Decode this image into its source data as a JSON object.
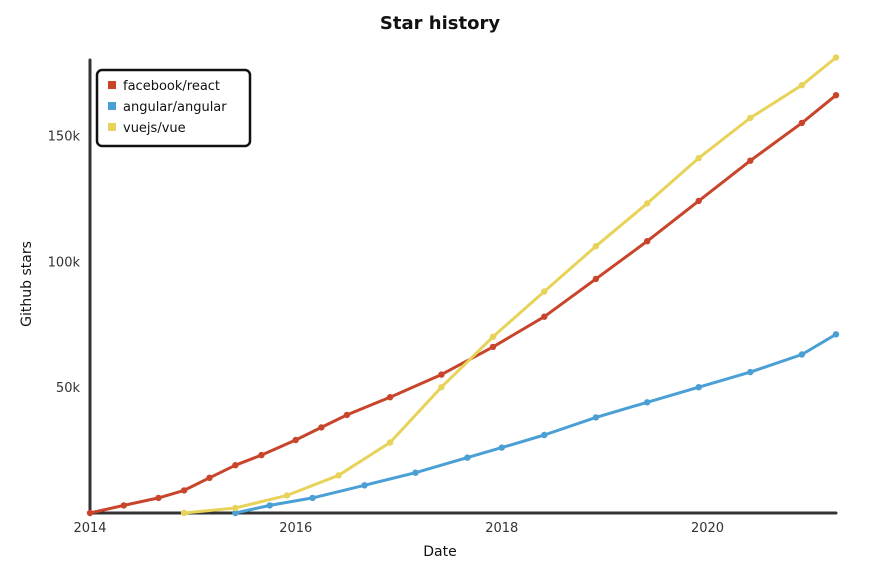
{
  "chart_data": {
    "type": "line",
    "title": "Star history",
    "xlabel": "Date",
    "ylabel": "Github stars",
    "xlim": [
      "2014-01-01",
      "2021-04-01"
    ],
    "ylim": [
      0,
      180000
    ],
    "x_ticks": [
      {
        "value": "2014-01-01",
        "label": "2014"
      },
      {
        "value": "2016-01-01",
        "label": "2016"
      },
      {
        "value": "2018-01-01",
        "label": "2018"
      },
      {
        "value": "2020-01-01",
        "label": "2020"
      }
    ],
    "y_ticks": [
      {
        "value": 50000,
        "label": "50k"
      },
      {
        "value": 100000,
        "label": "100k"
      },
      {
        "value": 150000,
        "label": "150k"
      }
    ],
    "legend_position": "top-left",
    "grid": false,
    "series": [
      {
        "name": "facebook/react",
        "color": "#c8452c",
        "points": [
          [
            "2014-01-01",
            0
          ],
          [
            "2014-05-01",
            3000
          ],
          [
            "2014-09-01",
            6000
          ],
          [
            "2014-12-01",
            9000
          ],
          [
            "2015-03-01",
            14000
          ],
          [
            "2015-06-01",
            19000
          ],
          [
            "2015-09-01",
            23000
          ],
          [
            "2016-01-01",
            29000
          ],
          [
            "2016-04-01",
            34000
          ],
          [
            "2016-07-01",
            39000
          ],
          [
            "2016-12-01",
            46000
          ],
          [
            "2017-06-01",
            55000
          ],
          [
            "2017-12-01",
            66000
          ],
          [
            "2018-06-01",
            78000
          ],
          [
            "2018-12-01",
            93000
          ],
          [
            "2019-06-01",
            108000
          ],
          [
            "2019-12-01",
            124000
          ],
          [
            "2020-06-01",
            140000
          ],
          [
            "2020-12-01",
            155000
          ],
          [
            "2021-04-01",
            166000
          ]
        ]
      },
      {
        "name": "angular/angular",
        "color": "#4a9fd5",
        "points": [
          [
            "2015-06-01",
            0
          ],
          [
            "2015-10-01",
            3000
          ],
          [
            "2016-03-01",
            6000
          ],
          [
            "2016-09-01",
            11000
          ],
          [
            "2017-03-01",
            16000
          ],
          [
            "2017-09-01",
            22000
          ],
          [
            "2018-01-01",
            26000
          ],
          [
            "2018-06-01",
            31000
          ],
          [
            "2018-12-01",
            38000
          ],
          [
            "2019-06-01",
            44000
          ],
          [
            "2019-12-01",
            50000
          ],
          [
            "2020-06-01",
            56000
          ],
          [
            "2020-12-01",
            63000
          ],
          [
            "2021-04-01",
            71000
          ]
        ]
      },
      {
        "name": "vuejs/vue",
        "color": "#e8d35a",
        "points": [
          [
            "2014-12-01",
            0
          ],
          [
            "2015-06-01",
            2000
          ],
          [
            "2015-12-01",
            7000
          ],
          [
            "2016-06-01",
            15000
          ],
          [
            "2016-12-01",
            28000
          ],
          [
            "2017-06-01",
            50000
          ],
          [
            "2017-12-01",
            70000
          ],
          [
            "2018-06-01",
            88000
          ],
          [
            "2018-12-01",
            106000
          ],
          [
            "2019-06-01",
            123000
          ],
          [
            "2019-12-01",
            141000
          ],
          [
            "2020-06-01",
            157000
          ],
          [
            "2020-12-01",
            170000
          ],
          [
            "2021-04-01",
            181000
          ]
        ]
      }
    ]
  }
}
